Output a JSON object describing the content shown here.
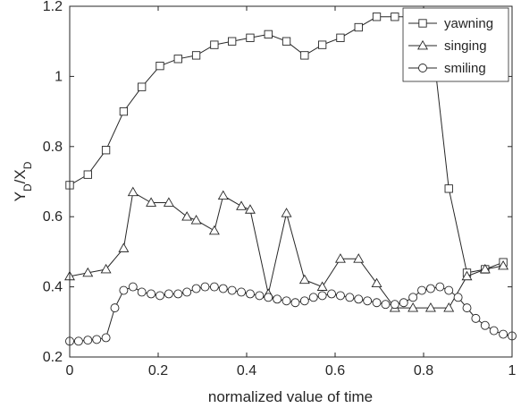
{
  "chart_data": {
    "type": "line",
    "xlabel": "normalized value of time",
    "ylabel": {
      "main": "Y",
      "sub": "D",
      "sep": "/X",
      "sub2": "D"
    },
    "xlim": [
      0,
      1
    ],
    "ylim": [
      0.2,
      1.2
    ],
    "xticks": [
      0,
      0.2,
      0.4,
      0.6,
      0.8,
      1
    ],
    "xtick_labels": [
      "0",
      "0.2",
      "0.4",
      "0.6",
      "0.8",
      "1"
    ],
    "yticks": [
      0.2,
      0.4,
      0.6,
      0.8,
      1,
      1.2
    ],
    "ytick_labels": [
      "0.2",
      "0.4",
      "0.6",
      "0.8",
      "1",
      "1.2"
    ],
    "grid": false,
    "legend_position": "top-right",
    "series": [
      {
        "name": "yawning",
        "marker": "square",
        "x": [
          0,
          0.041,
          0.082,
          0.122,
          0.163,
          0.204,
          0.245,
          0.286,
          0.327,
          0.367,
          0.408,
          0.449,
          0.49,
          0.531,
          0.571,
          0.612,
          0.653,
          0.694,
          0.735,
          0.776,
          0.816,
          0.857,
          0.898,
          0.939,
          0.98
        ],
        "y": [
          0.69,
          0.72,
          0.79,
          0.9,
          0.97,
          1.03,
          1.05,
          1.06,
          1.09,
          1.1,
          1.11,
          1.12,
          1.1,
          1.06,
          1.09,
          1.11,
          1.14,
          1.17,
          1.17,
          1.17,
          1.14,
          0.68,
          0.44,
          0.45,
          0.47
        ]
      },
      {
        "name": "singing",
        "marker": "triangle",
        "x": [
          0,
          0.041,
          0.082,
          0.122,
          0.143,
          0.184,
          0.224,
          0.265,
          0.286,
          0.327,
          0.347,
          0.388,
          0.408,
          0.449,
          0.49,
          0.531,
          0.571,
          0.612,
          0.653,
          0.694,
          0.735,
          0.776,
          0.816,
          0.857,
          0.898,
          0.939,
          0.98
        ],
        "y": [
          0.43,
          0.44,
          0.45,
          0.51,
          0.67,
          0.64,
          0.64,
          0.6,
          0.59,
          0.56,
          0.66,
          0.63,
          0.62,
          0.38,
          0.61,
          0.42,
          0.4,
          0.48,
          0.48,
          0.41,
          0.34,
          0.34,
          0.34,
          0.34,
          0.43,
          0.45,
          0.46
        ]
      },
      {
        "name": "smiling",
        "marker": "circle",
        "x": [
          0,
          0.02,
          0.041,
          0.061,
          0.082,
          0.102,
          0.122,
          0.143,
          0.163,
          0.184,
          0.204,
          0.224,
          0.245,
          0.265,
          0.286,
          0.306,
          0.327,
          0.347,
          0.367,
          0.388,
          0.408,
          0.429,
          0.449,
          0.469,
          0.49,
          0.51,
          0.531,
          0.551,
          0.571,
          0.592,
          0.612,
          0.633,
          0.653,
          0.673,
          0.694,
          0.714,
          0.735,
          0.755,
          0.776,
          0.796,
          0.816,
          0.837,
          0.857,
          0.878,
          0.898,
          0.918,
          0.939,
          0.959,
          0.98,
          1.0
        ],
        "y": [
          0.245,
          0.245,
          0.248,
          0.25,
          0.255,
          0.34,
          0.39,
          0.4,
          0.385,
          0.38,
          0.375,
          0.38,
          0.38,
          0.385,
          0.395,
          0.4,
          0.4,
          0.395,
          0.39,
          0.385,
          0.38,
          0.375,
          0.37,
          0.365,
          0.36,
          0.355,
          0.36,
          0.37,
          0.375,
          0.38,
          0.375,
          0.37,
          0.365,
          0.36,
          0.355,
          0.35,
          0.35,
          0.355,
          0.37,
          0.39,
          0.395,
          0.4,
          0.39,
          0.37,
          0.34,
          0.31,
          0.29,
          0.275,
          0.265,
          0.26
        ]
      }
    ]
  }
}
